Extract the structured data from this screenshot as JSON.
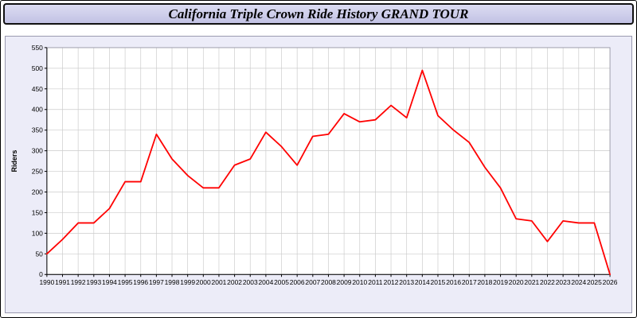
{
  "header": {
    "title": "California Triple Crown Ride History GRAND TOUR"
  },
  "chart_data": {
    "type": "line",
    "title": "California Triple Crown Ride History GRAND TOUR",
    "xlabel": "",
    "ylabel": "Riders",
    "ylim": [
      0,
      550
    ],
    "y_tick_step": 50,
    "grid": true,
    "legend": false,
    "line_color": "#ff0000",
    "plot_bg": "#ffffff",
    "panel_bg": "#ececf8",
    "x": [
      1990,
      1991,
      1992,
      1993,
      1994,
      1995,
      1996,
      1997,
      1998,
      1999,
      2000,
      2001,
      2002,
      2003,
      2004,
      2005,
      2006,
      2007,
      2008,
      2009,
      2010,
      2011,
      2012,
      2013,
      2014,
      2015,
      2016,
      2017,
      2018,
      2019,
      2020,
      2021,
      2022,
      2023,
      2024,
      2025,
      2026
    ],
    "values": [
      50,
      85,
      125,
      125,
      160,
      225,
      225,
      340,
      280,
      240,
      210,
      210,
      265,
      280,
      345,
      310,
      265,
      335,
      340,
      390,
      370,
      375,
      410,
      380,
      495,
      385,
      350,
      320,
      260,
      210,
      135,
      130,
      80,
      130,
      125,
      125,
      0
    ]
  }
}
